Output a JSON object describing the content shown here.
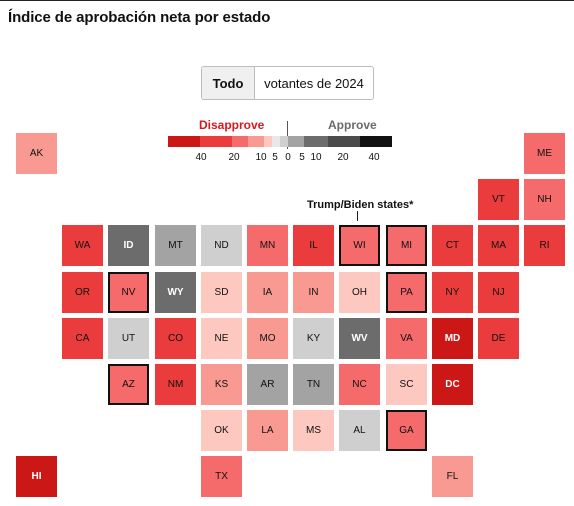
{
  "title": "Índice de aprobación neta por estado",
  "toggle": {
    "option1": "Todo",
    "option2": "votantes de 2024",
    "selected": "Todo"
  },
  "legend": {
    "disapprove_label": "Disapprove",
    "approve_label": "Approve",
    "disapprove_color": "#d7191c",
    "approve_color": "#6b6b6b",
    "swatches": [
      "#cc1717",
      "#ea3c3c",
      "#f56a6a",
      "#f89a92",
      "#fcc8c0",
      "#e8e8e8",
      "#cfcfcf",
      "#a3a3a3",
      "#6c6c6c",
      "#4b4b4b",
      "#111111"
    ],
    "ticks": [
      "40",
      "20",
      "10",
      "5",
      "0",
      "5",
      "10",
      "20",
      "40"
    ]
  },
  "annotation": "Trump/Biden states*",
  "chart_data": {
    "type": "tile-grid-map",
    "title": "Índice de aprobación neta por estado",
    "selected_view": "Todo",
    "highlight_meaning": "Trump/Biden states*",
    "states": [
      {
        "abbr": "AK",
        "bin": "dis 5-10"
      },
      {
        "abbr": "ME",
        "bin": "dis 10-20"
      },
      {
        "abbr": "VT",
        "bin": "dis 20-40"
      },
      {
        "abbr": "NH",
        "bin": "dis 10-20"
      },
      {
        "abbr": "WA",
        "bin": "dis 20-40"
      },
      {
        "abbr": "ID",
        "bin": "app 20-40"
      },
      {
        "abbr": "MT",
        "bin": "app 10-20"
      },
      {
        "abbr": "ND",
        "bin": "app 0-5"
      },
      {
        "abbr": "MN",
        "bin": "dis 10-20"
      },
      {
        "abbr": "IL",
        "bin": "dis 20-40"
      },
      {
        "abbr": "WI",
        "bin": "dis 10-20",
        "highlight": true
      },
      {
        "abbr": "MI",
        "bin": "dis 10-20",
        "highlight": true
      },
      {
        "abbr": "CT",
        "bin": "dis 20-40"
      },
      {
        "abbr": "MA",
        "bin": "dis 20-40"
      },
      {
        "abbr": "RI",
        "bin": "dis 20-40"
      },
      {
        "abbr": "OR",
        "bin": "dis 20-40"
      },
      {
        "abbr": "NV",
        "bin": "dis 10-20",
        "highlight": true
      },
      {
        "abbr": "WY",
        "bin": "app 20-40"
      },
      {
        "abbr": "SD",
        "bin": "dis 0-5"
      },
      {
        "abbr": "IA",
        "bin": "dis 5-10"
      },
      {
        "abbr": "IN",
        "bin": "dis 5-10"
      },
      {
        "abbr": "OH",
        "bin": "dis 0-5"
      },
      {
        "abbr": "PA",
        "bin": "dis 10-20",
        "highlight": true
      },
      {
        "abbr": "NY",
        "bin": "dis 20-40"
      },
      {
        "abbr": "NJ",
        "bin": "dis 20-40"
      },
      {
        "abbr": "CA",
        "bin": "dis 20-40"
      },
      {
        "abbr": "UT",
        "bin": "app 0-5"
      },
      {
        "abbr": "CO",
        "bin": "dis 20-40"
      },
      {
        "abbr": "NE",
        "bin": "dis 0-5"
      },
      {
        "abbr": "MO",
        "bin": "dis 5-10"
      },
      {
        "abbr": "KY",
        "bin": "app 0-5"
      },
      {
        "abbr": "WV",
        "bin": "app 20-40"
      },
      {
        "abbr": "VA",
        "bin": "dis 10-20"
      },
      {
        "abbr": "MD",
        "bin": "dis 40+"
      },
      {
        "abbr": "DE",
        "bin": "dis 20-40"
      },
      {
        "abbr": "AZ",
        "bin": "dis 10-20",
        "highlight": true
      },
      {
        "abbr": "NM",
        "bin": "dis 20-40"
      },
      {
        "abbr": "KS",
        "bin": "dis 5-10"
      },
      {
        "abbr": "AR",
        "bin": "app 5-10"
      },
      {
        "abbr": "TN",
        "bin": "app 5-10"
      },
      {
        "abbr": "NC",
        "bin": "dis 10-20"
      },
      {
        "abbr": "SC",
        "bin": "dis 0-5"
      },
      {
        "abbr": "DC",
        "bin": "dis 40+"
      },
      {
        "abbr": "OK",
        "bin": "dis 0-5"
      },
      {
        "abbr": "LA",
        "bin": "dis 5-10"
      },
      {
        "abbr": "MS",
        "bin": "dis 0-5"
      },
      {
        "abbr": "AL",
        "bin": "app 0-5"
      },
      {
        "abbr": "GA",
        "bin": "dis 10-20",
        "highlight": true
      },
      {
        "abbr": "HI",
        "bin": "dis 40+"
      },
      {
        "abbr": "TX",
        "bin": "dis 10-20"
      },
      {
        "abbr": "FL",
        "bin": "dis 5-10"
      }
    ]
  }
}
